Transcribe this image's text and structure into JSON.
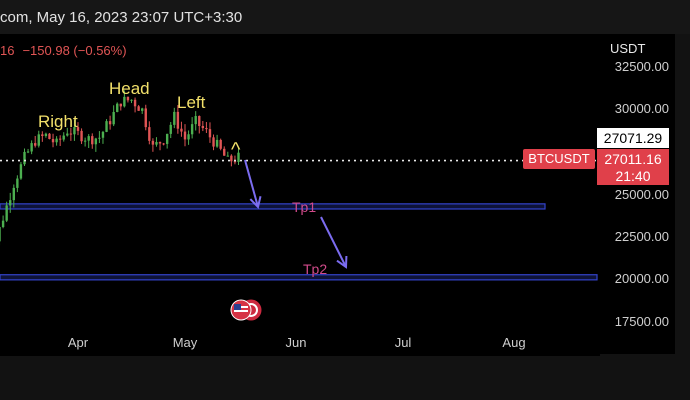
{
  "header": {
    "title": "com, May 16, 2023 23:07 UTC+3:30"
  },
  "quote": {
    "prefix": "16",
    "change": "−150.98 (−0.56%)"
  },
  "currency": "USDT",
  "ticker": "BTCUSDT",
  "last_price": "27071.29",
  "current_price": "27011.16",
  "countdown": "21:40",
  "colors": {
    "background": "#000000",
    "up": "#4caf50",
    "down": "#e05555",
    "price_badge": "#e0404a",
    "annotation": "#f2e06a",
    "target_label": "#d04a8a",
    "target_zone": "#3344cc",
    "arrow": "#7b6cf0"
  },
  "chart_data": {
    "type": "candlestick",
    "title": "",
    "xlabel": "",
    "ylabel": "",
    "y_ticks": [
      "32500.00",
      "30000.00",
      "27500.00",
      "25000.00",
      "22500.00",
      "20000.00",
      "17500.00"
    ],
    "x_ticks": [
      "Apr",
      "May",
      "Jun",
      "Jul",
      "Aug"
    ],
    "ylim": [
      16600,
      33900
    ],
    "price_axis_side": "right",
    "grid": false,
    "series": [
      {
        "name": "BTCUSDT",
        "close_path": [
          [
            "2023-03-05",
            20000
          ],
          [
            "2023-03-08",
            21500
          ],
          [
            "2023-03-11",
            23500
          ],
          [
            "2023-03-14",
            25500
          ],
          [
            "2023-03-17",
            27000
          ],
          [
            "2023-03-20",
            28000
          ],
          [
            "2023-03-23",
            28300
          ],
          [
            "2023-03-26",
            27800
          ],
          [
            "2023-03-29",
            28600
          ],
          [
            "2023-04-01",
            28400
          ],
          [
            "2023-04-04",
            28100
          ],
          [
            "2023-04-07",
            28200
          ],
          [
            "2023-04-10",
            29200
          ],
          [
            "2023-04-13",
            30300
          ],
          [
            "2023-04-16",
            30400
          ],
          [
            "2023-04-19",
            29800
          ],
          [
            "2023-04-22",
            27600
          ],
          [
            "2023-04-25",
            28100
          ],
          [
            "2023-04-28",
            29400
          ],
          [
            "2023-05-01",
            28100
          ],
          [
            "2023-05-04",
            29100
          ],
          [
            "2023-05-07",
            28500
          ],
          [
            "2023-05-10",
            27700
          ],
          [
            "2023-05-13",
            26800
          ],
          [
            "2023-05-16",
            27011
          ]
        ]
      }
    ],
    "target_zones": [
      {
        "label": "Tp1",
        "low": 24000,
        "high": 24300
      },
      {
        "label": "Tp2",
        "low": 19850,
        "high": 20150
      }
    ],
    "pattern_labels": [
      "Right",
      "Head",
      "Left"
    ],
    "price_line": 27071.29,
    "annotations": [
      "^"
    ]
  }
}
